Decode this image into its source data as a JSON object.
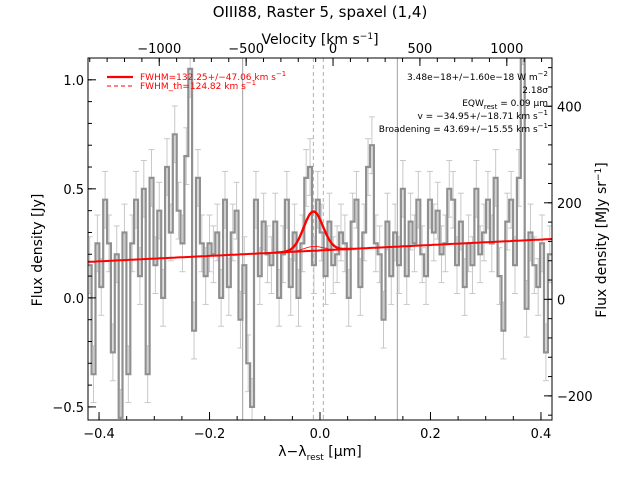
{
  "chart_data": {
    "type": "line",
    "title": "OIII88, Raster 5, spaxel (1,4)",
    "xlabel_bottom_main": "λ−λ",
    "xlabel_bottom_sub": "rest",
    "xlabel_bottom_unit": " [μm]",
    "xlabel_top_main": "Velocity [km s",
    "xlabel_top_sup": "−1",
    "xlabel_top_end": "]",
    "ylabel_left": "Flux density [Jy]",
    "ylabel_right_main": "Flux density [MJy sr",
    "ylabel_right_sup": "−1",
    "ylabel_right_end": "]",
    "xlim": [
      -0.42,
      0.42
    ],
    "ylim": [
      -0.56,
      1.1
    ],
    "right_ylim": [
      -250,
      500
    ],
    "top_xlim": [
      -1410,
      1260
    ],
    "x_ticks": [
      -0.4,
      -0.2,
      0.0,
      0.2,
      0.4
    ],
    "x_tick_labels": [
      "−0.4",
      "−0.2",
      "0.0",
      "0.2",
      "0.4"
    ],
    "y_ticks": [
      -0.5,
      0.0,
      0.5,
      1.0
    ],
    "y_tick_labels": [
      "−0.5",
      "0.0",
      "0.5",
      "1.0"
    ],
    "right_ticks": [
      -200,
      0,
      200,
      400
    ],
    "right_tick_labels": [
      "−200",
      "0",
      "200",
      "400"
    ],
    "top_ticks": [
      -1000,
      -500,
      0,
      500,
      1000
    ],
    "top_tick_labels": [
      "−1000",
      "−500",
      "0",
      "500",
      "1000"
    ],
    "vertical_lines_solid": [
      -0.14,
      0.14
    ],
    "vertical_line_dashed": [
      -0.012,
      0.006
    ],
    "series": [
      {
        "name": "data",
        "style": "step",
        "color": "#909090",
        "x": [
          -0.417,
          -0.41,
          -0.403,
          -0.396,
          -0.389,
          -0.382,
          -0.375,
          -0.368,
          -0.361,
          -0.354,
          -0.347,
          -0.34,
          -0.333,
          -0.326,
          -0.319,
          -0.312,
          -0.305,
          -0.298,
          -0.291,
          -0.284,
          -0.277,
          -0.27,
          -0.263,
          -0.256,
          -0.249,
          -0.242,
          -0.235,
          -0.228,
          -0.221,
          -0.214,
          -0.207,
          -0.2,
          -0.193,
          -0.186,
          -0.179,
          -0.172,
          -0.165,
          -0.158,
          -0.151,
          -0.144,
          -0.137,
          -0.13,
          -0.123,
          -0.116,
          -0.109,
          -0.102,
          -0.095,
          -0.088,
          -0.081,
          -0.074,
          -0.067,
          -0.06,
          -0.053,
          -0.046,
          -0.039,
          -0.032,
          -0.025,
          -0.018,
          -0.011,
          -0.004,
          0.003,
          0.01,
          0.017,
          0.024,
          0.031,
          0.038,
          0.045,
          0.052,
          0.059,
          0.066,
          0.073,
          0.08,
          0.087,
          0.094,
          0.101,
          0.108,
          0.115,
          0.122,
          0.129,
          0.136,
          0.143,
          0.15,
          0.157,
          0.164,
          0.171,
          0.178,
          0.185,
          0.192,
          0.199,
          0.206,
          0.213,
          0.22,
          0.227,
          0.234,
          0.241,
          0.248,
          0.255,
          0.262,
          0.269,
          0.276,
          0.283,
          0.29,
          0.297,
          0.304,
          0.311,
          0.318,
          0.325,
          0.332,
          0.339,
          0.346,
          0.353,
          0.36,
          0.367,
          0.374,
          0.381,
          0.388,
          0.395,
          0.402,
          0.409,
          0.416
        ],
        "y": [
          0.15,
          -0.35,
          0.25,
          0.05,
          0.45,
          0.25,
          -0.25,
          0.2,
          -0.55,
          0.3,
          -0.35,
          0.25,
          0.45,
          0.1,
          0.5,
          -0.35,
          0.55,
          0.15,
          0.4,
          0.0,
          0.6,
          0.3,
          0.75,
          0.4,
          0.25,
          0.65,
          1.05,
          -0.15,
          0.55,
          0.25,
          0.1,
          0.25,
          0.2,
          0.3,
          0.0,
          0.45,
          0.05,
          0.3,
          0.4,
          -0.1,
          0.15,
          -0.3,
          -0.5,
          0.45,
          0.1,
          0.35,
          0.2,
          0.15,
          0.35,
          0.0,
          0.2,
          0.45,
          0.05,
          0.3,
          0.0,
          0.25,
          0.55,
          0.6,
          0.15,
          0.45,
          0.3,
          0.1,
          0.35,
          0.15,
          0.2,
          0.3,
          0.25,
          0.0,
          0.35,
          0.45,
          0.05,
          0.3,
          0.6,
          0.7,
          0.25,
          0.2,
          -0.1,
          0.35,
          0.1,
          0.3,
          0.15,
          0.5,
          0.1,
          0.35,
          0.25,
          0.45,
          0.2,
          0.1,
          0.45,
          0.3,
          0.4,
          0.2,
          0.25,
          0.5,
          0.45,
          0.15,
          0.35,
          0.05,
          0.25,
          0.15,
          0.5,
          0.2,
          0.3,
          0.45,
          0.25,
          0.55,
          0.1,
          -0.15,
          0.35,
          0.45,
          0.15,
          0.55,
          1.2,
          -0.05,
          0.3,
          0.15,
          0.05,
          0.25,
          -0.25,
          0.2
        ],
        "err": 0.13
      },
      {
        "name": "FWHM=132.25+/−47.06 km s",
        "name_sup": "−1",
        "style": "line",
        "color": "#ff0000",
        "model": "baseline+gaussian",
        "baseline": [
          0.165,
          0.27
        ],
        "amplitude": 0.18,
        "center": -0.012,
        "sigma": 0.0175,
        "range": [
          -0.42,
          0.42
        ]
      },
      {
        "name": "FWHM_th=124.82 km s",
        "name_sup": "−1",
        "style": "dashed",
        "color": "#ff0000"
      }
    ],
    "annotations": [
      {
        "text": "3.48e−18+/−1.60e−18 W m",
        "sup": "−2"
      },
      {
        "text": "2.18σ",
        "sup": ""
      },
      {
        "text": "EQW",
        "sub": "rest",
        "text2": " = 0.09 μm"
      },
      {
        "text": "v = −34.95+/−18.71 km s",
        "sup": "−1"
      },
      {
        "text": "Broadening = 43.69+/−15.55 km s",
        "sup": "−1"
      }
    ],
    "legend_position": "top-left",
    "annotation_position": "top-right"
  }
}
